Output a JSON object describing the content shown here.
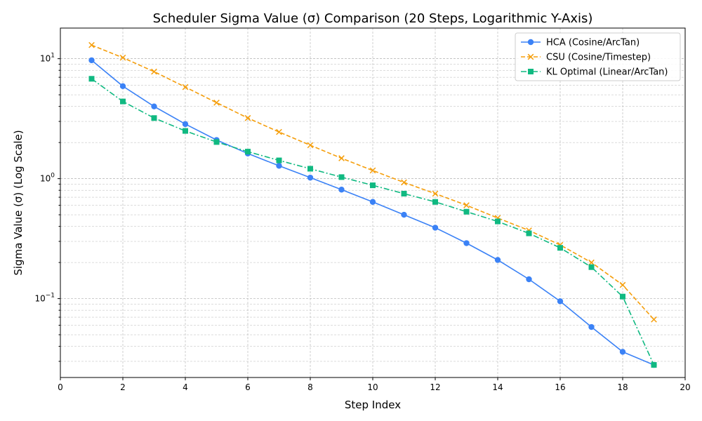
{
  "chart_data": {
    "type": "line",
    "title": "Scheduler Sigma Value (σ) Comparison (20 Steps, Logarithmic Y-Axis)",
    "xlabel": "Step Index",
    "ylabel": "Sigma Value (σ) (Log Scale)",
    "xlim": [
      0,
      20
    ],
    "ylim": [
      0.022,
      18
    ],
    "yscale": "log",
    "grid": true,
    "legend_position": "top-right",
    "x_ticks": [
      "0",
      "2",
      "4",
      "6",
      "8",
      "10",
      "12",
      "14",
      "16",
      "18",
      "20"
    ],
    "y_ticks": [
      {
        "base": "10",
        "exp": "1",
        "value": 10
      },
      {
        "base": "10",
        "exp": "0",
        "value": 1
      },
      {
        "base": "10",
        "exp": "−1",
        "value": 0.1
      }
    ],
    "x": [
      1,
      2,
      3,
      4,
      5,
      6,
      7,
      8,
      9,
      10,
      11,
      12,
      13,
      14,
      15,
      16,
      17,
      18,
      19
    ],
    "series": [
      {
        "name": "HCA (Cosine/ArcTan)",
        "color": "#3b82f6",
        "marker": "circle",
        "dash": "solid",
        "values": [
          9.7,
          5.9,
          4.0,
          2.85,
          2.1,
          1.62,
          1.28,
          1.02,
          0.81,
          0.64,
          0.5,
          0.39,
          0.29,
          0.21,
          0.145,
          0.095,
          0.058,
          0.036,
          0.028
        ]
      },
      {
        "name": "CSU (Cosine/Timestep)",
        "color": "#f59e0b",
        "marker": "x",
        "dash": "dashed",
        "values": [
          13.0,
          10.2,
          7.8,
          5.8,
          4.3,
          3.2,
          2.45,
          1.9,
          1.48,
          1.17,
          0.93,
          0.75,
          0.6,
          0.47,
          0.37,
          0.28,
          0.2,
          0.13,
          0.067
        ]
      },
      {
        "name": "KL Optimal (Linear/ArcTan)",
        "color": "#10b981",
        "marker": "square",
        "dash": "dashdot",
        "values": [
          6.8,
          4.4,
          3.2,
          2.5,
          2.02,
          1.68,
          1.42,
          1.21,
          1.03,
          0.88,
          0.75,
          0.64,
          0.53,
          0.44,
          0.35,
          0.265,
          0.183,
          0.104,
          0.028
        ]
      }
    ]
  }
}
